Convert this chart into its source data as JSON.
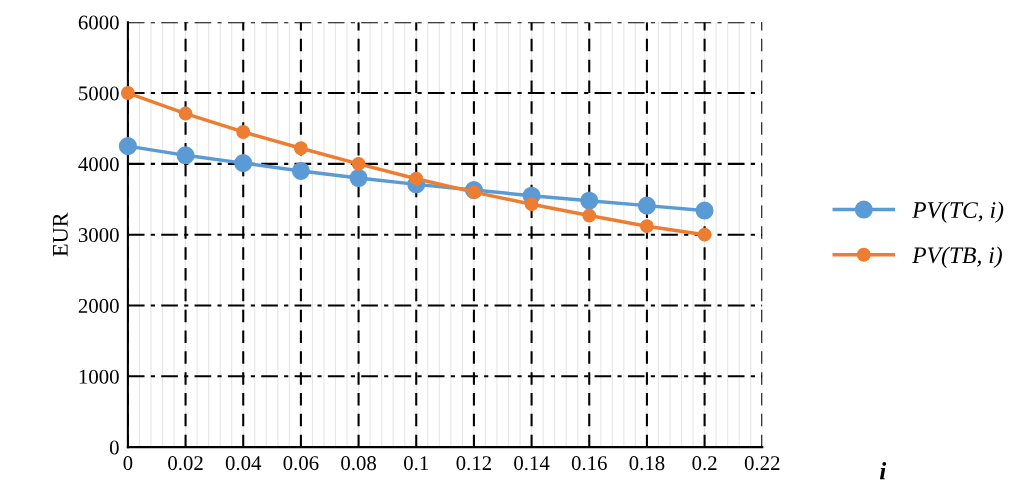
{
  "chart_data": {
    "type": "line",
    "xlabel": "i",
    "ylabel": "EUR",
    "x": [
      0,
      0.02,
      0.04,
      0.06,
      0.08,
      0.1,
      0.12,
      0.14,
      0.16,
      0.18,
      0.2
    ],
    "series": [
      {
        "name": "PV(TC, i)",
        "color": "#5b9bd5",
        "values": [
          4250,
          4120,
          4010,
          3900,
          3800,
          3710,
          3630,
          3550,
          3480,
          3410,
          3340
        ]
      },
      {
        "name": "PV(TB, i)",
        "color": "#ed7d31",
        "values": [
          5000,
          4710,
          4450,
          4220,
          4000,
          3790,
          3600,
          3430,
          3270,
          3120,
          3000
        ]
      }
    ],
    "xlim": [
      0,
      0.22
    ],
    "xticks": [
      0,
      0.02,
      0.04,
      0.06,
      0.08,
      0.1,
      0.12,
      0.14,
      0.16,
      0.18,
      0.2,
      0.22
    ],
    "ylim": [
      0,
      6000
    ],
    "yticks": [
      0,
      1000,
      2000,
      3000,
      4000,
      5000,
      6000
    ],
    "grid": true,
    "legend": "right",
    "marker": "circle",
    "line_style": "solid"
  }
}
